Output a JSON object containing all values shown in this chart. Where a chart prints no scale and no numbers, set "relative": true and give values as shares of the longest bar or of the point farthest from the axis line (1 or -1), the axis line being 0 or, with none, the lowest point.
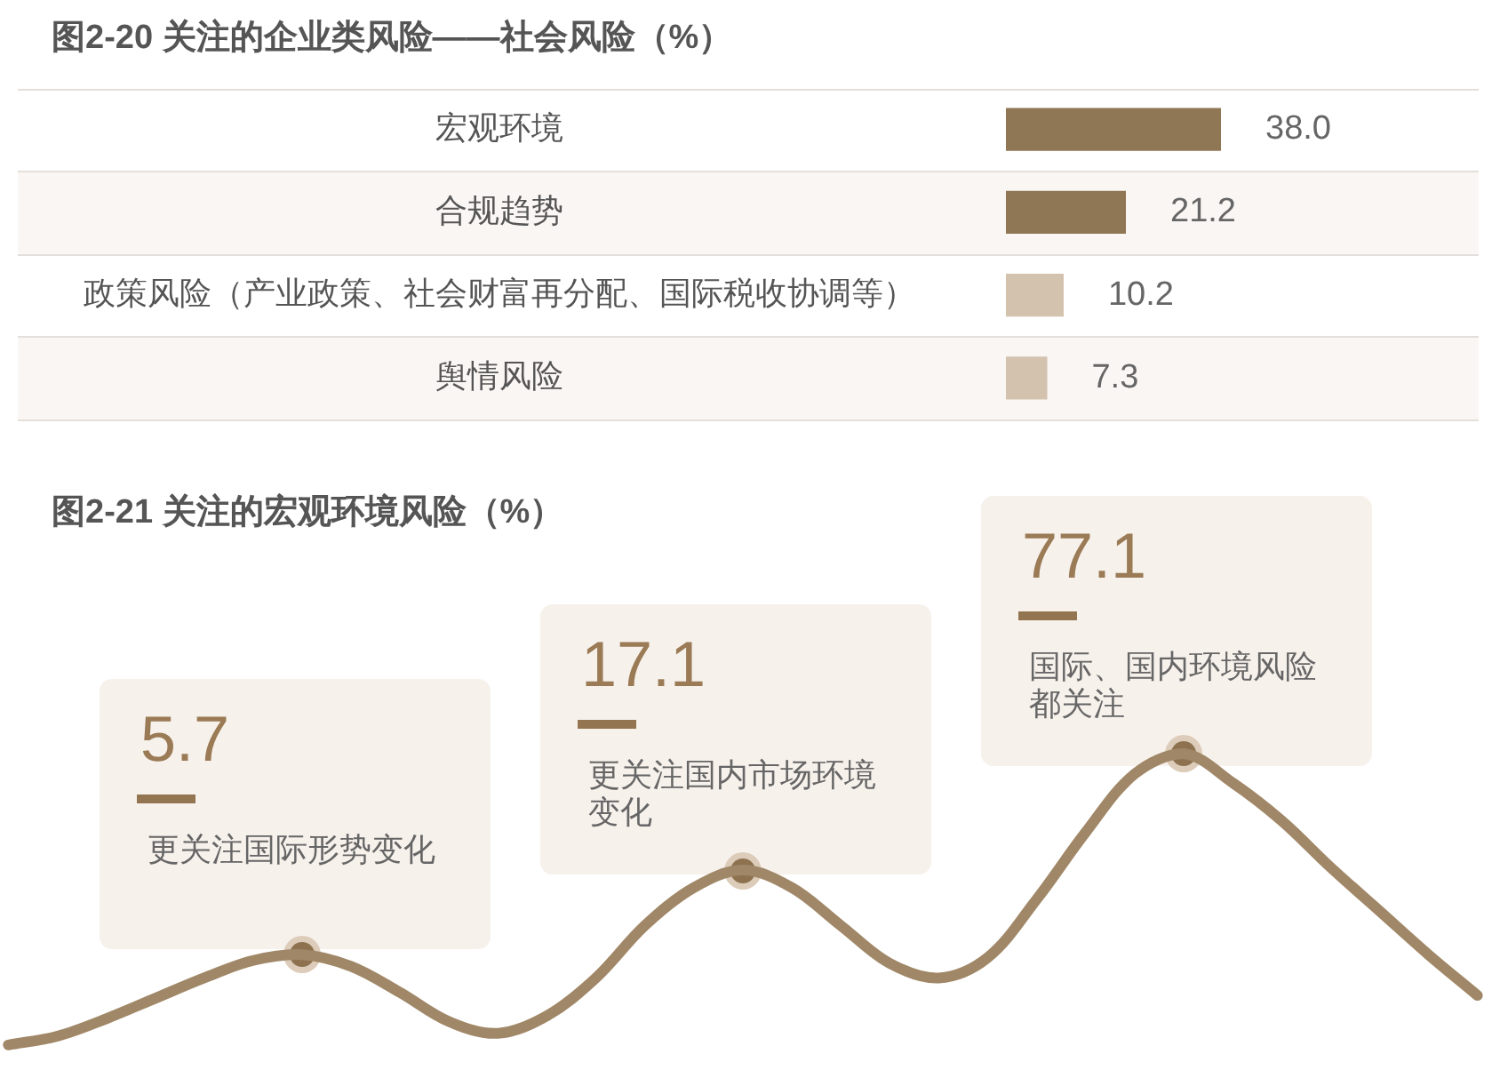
{
  "chart_data": [
    {
      "type": "bar",
      "orientation": "horizontal",
      "title": "图2-20 关注的企业类风险——社会风险（%）",
      "categories": [
        "宏观环境",
        "合规趋势",
        "政策风险（产业政策、社会财富再分配、国际税收协调等）",
        "舆情风险"
      ],
      "values": [
        38.0,
        21.2,
        10.2,
        7.3
      ],
      "value_labels": [
        "38.0",
        "21.2",
        "10.2",
        "7.3"
      ],
      "colors": [
        "#8f7654",
        "#8f7654",
        "#d3c2ae",
        "#d3c2ae"
      ]
    },
    {
      "type": "other",
      "title": "图2-21 关注的宏观环境风险（%）",
      "categories": [
        "更关注国际形势变化",
        "更关注国内市场环境变化",
        "国际、国内环境风险都关注"
      ],
      "values": [
        5.7,
        17.1,
        77.1
      ],
      "data_labels": true
    },
    {
      "type": "line",
      "relative": true,
      "categories": [
        null,
        null,
        null,
        null,
        null,
        null,
        null,
        null,
        null,
        null,
        null,
        null,
        null,
        null,
        null,
        null,
        null,
        null,
        null,
        null,
        null,
        null,
        null,
        null,
        null,
        null,
        null,
        null,
        null,
        null,
        null
      ],
      "color": "#a08767",
      "values": [
        0,
        0.03,
        0.09,
        0.16,
        0.23,
        0.29,
        0.31,
        0.27,
        0.18,
        0.08,
        0.04,
        0.1,
        0.23,
        0.41,
        0.54,
        0.6,
        0.54,
        0.41,
        0.28,
        0.23,
        0.3,
        0.5,
        0.73,
        0.93,
        1,
        0.9,
        0.77,
        0.61,
        0.46,
        0.31,
        0.17
      ]
    }
  ]
}
